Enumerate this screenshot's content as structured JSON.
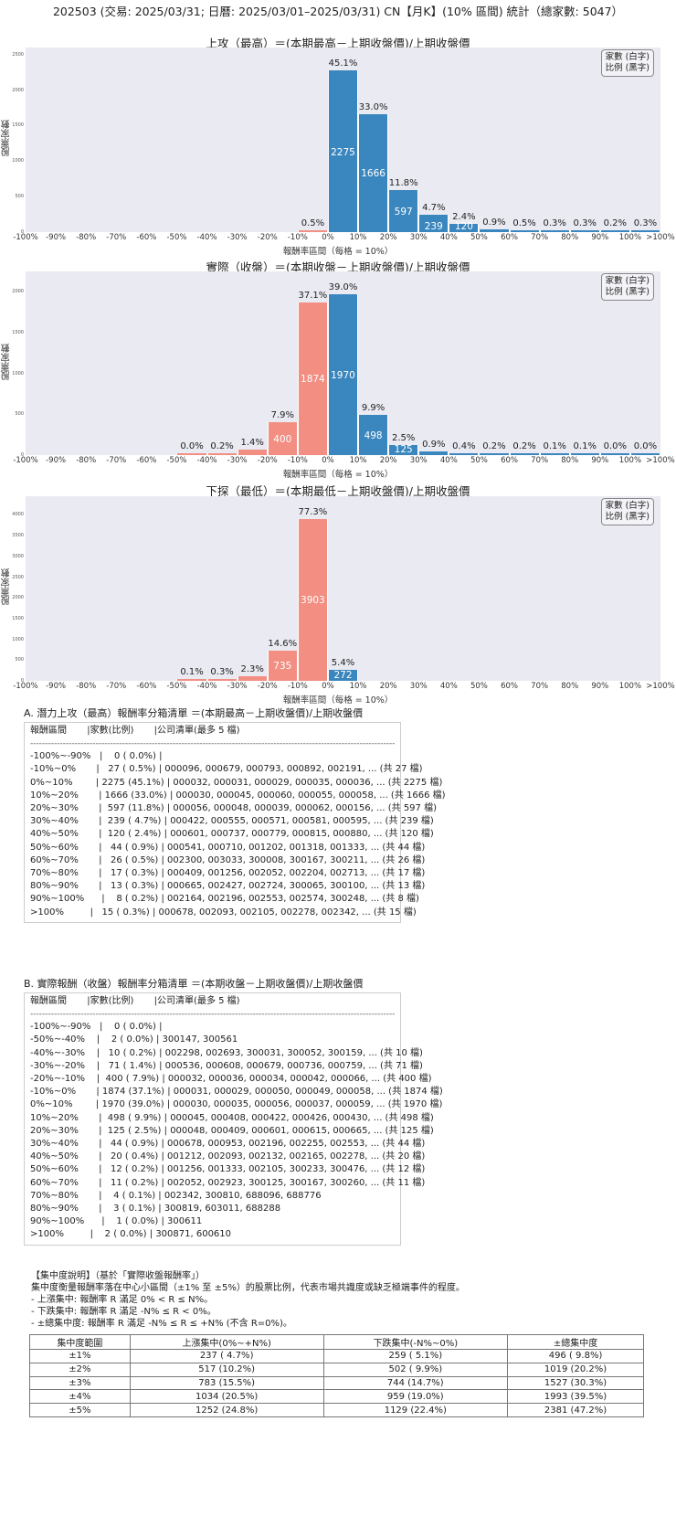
{
  "title": "202503 (交易: 2025/03/31; 日曆: 2025/03/01–2025/03/31) CN【月K】(10% 區間) 統計（總家數: 5047）",
  "legend": {
    "line1": "家數 (白字)",
    "line2": "比例 (黑字)"
  },
  "chart_data": [
    {
      "type": "bar",
      "title": "上攻（最高）＝(本期最高－上期收盤價)/上期收盤價",
      "xlabel": "報酬率區間（每格 = 10%）",
      "ylabel": "股票家數",
      "ylim": [
        0,
        2600
      ],
      "yticks": [
        "0",
        "500",
        "1000",
        "1500",
        "2000",
        "2500"
      ],
      "xticks": [
        "-100%",
        "-90%",
        "-80%",
        "-70%",
        "-60%",
        "-50%",
        "-40%",
        "-30%",
        "-20%",
        "-10%",
        "0%",
        "10%",
        "20%",
        "30%",
        "40%",
        "50%",
        "60%",
        "70%",
        "80%",
        "90%",
        "100%",
        ">100%"
      ],
      "categories": [
        "-100%~-90%",
        "-90%~-80%",
        "-80%~-70%",
        "-70%~-60%",
        "-60%~-50%",
        "-50%~-40%",
        "-40%~-30%",
        "-30%~-20%",
        "-20%~-10%",
        "-10%~0%",
        "0%~10%",
        "10%~20%",
        "20%~30%",
        "30%~40%",
        "40%~50%",
        "50%~60%",
        "60%~70%",
        "70%~80%",
        "80%~90%",
        "90%~100%",
        ">100%"
      ],
      "values": [
        0,
        0,
        0,
        0,
        0,
        0,
        0,
        0,
        0,
        27,
        2275,
        1666,
        597,
        239,
        120,
        44,
        26,
        17,
        13,
        8,
        15
      ],
      "pct_labels": [
        "",
        "",
        "",
        "",
        "",
        "",
        "",
        "",
        "",
        "0.5%",
        "45.1%",
        "33.0%",
        "11.8%",
        "4.7%",
        "2.4%",
        "0.9%",
        "0.5%",
        "0.3%",
        "0.3%",
        "0.2%",
        "0.3%"
      ],
      "count_labels": [
        "",
        "",
        "",
        "",
        "",
        "",
        "",
        "",
        "",
        "",
        "2275",
        "1666",
        "597",
        "239",
        "120",
        "",
        "",
        "",
        "",
        "",
        ""
      ]
    },
    {
      "type": "bar",
      "title": "實際（收盤）＝(本期收盤－上期收盤價)/上期收盤價",
      "xlabel": "報酬率區間（每格 = 10%）",
      "ylabel": "股票家數",
      "ylim": [
        0,
        2250
      ],
      "yticks": [
        "0",
        "500",
        "1000",
        "1500",
        "2000"
      ],
      "xticks": [
        "-100%",
        "-90%",
        "-80%",
        "-70%",
        "-60%",
        "-50%",
        "-40%",
        "-30%",
        "-20%",
        "-10%",
        "0%",
        "10%",
        "20%",
        "30%",
        "40%",
        "50%",
        "60%",
        "70%",
        "80%",
        "90%",
        "100%",
        ">100%"
      ],
      "categories": [
        "-100%~-90%",
        "-90%~-80%",
        "-80%~-70%",
        "-70%~-60%",
        "-60%~-50%",
        "-50%~-40%",
        "-40%~-30%",
        "-30%~-20%",
        "-20%~-10%",
        "-10%~0%",
        "0%~10%",
        "10%~20%",
        "20%~30%",
        "30%~40%",
        "40%~50%",
        "50%~60%",
        "60%~70%",
        "70%~80%",
        "80%~90%",
        "90%~100%",
        ">100%"
      ],
      "values": [
        0,
        0,
        0,
        0,
        0,
        2,
        10,
        71,
        400,
        1874,
        1970,
        498,
        125,
        44,
        20,
        12,
        11,
        4,
        3,
        1,
        2
      ],
      "pct_labels": [
        "",
        "",
        "",
        "",
        "",
        "0.0%",
        "0.2%",
        "1.4%",
        "7.9%",
        "37.1%",
        "39.0%",
        "9.9%",
        "2.5%",
        "0.9%",
        "0.4%",
        "0.2%",
        "0.2%",
        "0.1%",
        "0.1%",
        "0.0%",
        "0.0%"
      ],
      "count_labels": [
        "",
        "",
        "",
        "",
        "",
        "",
        "",
        "",
        "400",
        "1874",
        "1970",
        "498",
        "125",
        "",
        "",
        "",
        "",
        "",
        "",
        "",
        ""
      ]
    },
    {
      "type": "bar",
      "title": "下探（最低）＝(本期最低－上期收盤價)/上期收盤價",
      "xlabel": "報酬率區間（每格 = 10%）",
      "ylabel": "股票家數",
      "ylim": [
        0,
        4450
      ],
      "yticks": [
        "0",
        "500",
        "1000",
        "1500",
        "2000",
        "2500",
        "3000",
        "3500",
        "4000"
      ],
      "xticks": [
        "-100%",
        "-90%",
        "-80%",
        "-70%",
        "-60%",
        "-50%",
        "-40%",
        "-30%",
        "-20%",
        "-10%",
        "0%",
        "10%",
        "20%",
        "30%",
        "40%",
        "50%",
        "60%",
        "70%",
        "80%",
        "90%",
        "100%",
        ">100%"
      ],
      "categories": [
        "-100%~-90%",
        "-90%~-80%",
        "-80%~-70%",
        "-70%~-60%",
        "-60%~-50%",
        "-50%~-40%",
        "-40%~-30%",
        "-30%~-20%",
        "-20%~-10%",
        "-10%~0%",
        "0%~10%",
        "10%~20%",
        "20%~30%",
        "30%~40%",
        "40%~50%",
        "50%~60%",
        "60%~70%",
        "70%~80%",
        "80%~90%",
        "90%~100%",
        ">100%"
      ],
      "values": [
        0,
        0,
        0,
        0,
        0,
        5,
        15,
        117,
        735,
        3903,
        272,
        0,
        0,
        0,
        0,
        0,
        0,
        0,
        0,
        0,
        0
      ],
      "pct_labels": [
        "",
        "",
        "",
        "",
        "",
        "0.1%",
        "0.3%",
        "2.3%",
        "14.6%",
        "77.3%",
        "5.4%",
        "",
        "",
        "",
        "",
        "",
        "",
        "",
        "",
        "",
        ""
      ],
      "count_labels": [
        "",
        "",
        "",
        "",
        "",
        "",
        "",
        "",
        "735",
        "3903",
        "272",
        "",
        "",
        "",
        "",
        "",
        "",
        "",
        "",
        "",
        ""
      ]
    }
  ],
  "section_a": {
    "title": "A. 潛力上攻（最高）報酬率分箱清單 ＝(本期最高－上期收盤價)/上期收盤價",
    "header": "報酬區間       |家數(比例)       |公司清單(最多 5 檔)",
    "divider": "------------------------------------------------------------------------------------------------------------------------------------------",
    "rows": [
      "-100%~-90%   |    0 ( 0.0%) |",
      "-10%~0%       |   27 ( 0.5%) | 000096, 000679, 000793, 000892, 002191, ... (共 27 檔)",
      "0%~10%        | 2275 (45.1%) | 000032, 000031, 000029, 000035, 000036, ... (共 2275 檔)",
      "10%~20%       | 1666 (33.0%) | 000030, 000045, 000060, 000055, 000058, ... (共 1666 檔)",
      "20%~30%       |  597 (11.8%) | 000056, 000048, 000039, 000062, 000156, ... (共 597 檔)",
      "30%~40%       |  239 ( 4.7%) | 000422, 000555, 000571, 000581, 000595, ... (共 239 檔)",
      "40%~50%       |  120 ( 2.4%) | 000601, 000737, 000779, 000815, 000880, ... (共 120 檔)",
      "50%~60%       |   44 ( 0.9%) | 000541, 000710, 001202, 001318, 001333, ... (共 44 檔)",
      "60%~70%       |   26 ( 0.5%) | 002300, 003033, 300008, 300167, 300211, ... (共 26 檔)",
      "70%~80%       |   17 ( 0.3%) | 000409, 001256, 002052, 002204, 002713, ... (共 17 檔)",
      "80%~90%       |   13 ( 0.3%) | 000665, 002427, 002724, 300065, 300100, ... (共 13 檔)",
      "90%~100%      |    8 ( 0.2%) | 002164, 002196, 002553, 002574, 300248, ... (共 8 檔)",
      ">100%         |   15 ( 0.3%) | 000678, 002093, 002105, 002278, 002342, ... (共 15 檔)"
    ]
  },
  "section_b": {
    "title": "B. 實際報酬（收盤）報酬率分箱清單 ＝(本期收盤－上期收盤價)/上期收盤價",
    "header": "報酬區間       |家數(比例)       |公司清單(最多 5 檔)",
    "divider": "------------------------------------------------------------------------------------------------------------------------------------------",
    "rows": [
      "-100%~-90%   |    0 ( 0.0%) |",
      "-50%~-40%    |    2 ( 0.0%) | 300147, 300561",
      "-40%~-30%    |   10 ( 0.2%) | 002298, 002693, 300031, 300052, 300159, ... (共 10 檔)",
      "-30%~-20%    |   71 ( 1.4%) | 000536, 000608, 000679, 000736, 000759, ... (共 71 檔)",
      "-20%~-10%    |  400 ( 7.9%) | 000032, 000036, 000034, 000042, 000066, ... (共 400 檔)",
      "-10%~0%       | 1874 (37.1%) | 000031, 000029, 000050, 000049, 000058, ... (共 1874 檔)",
      "0%~10%        | 1970 (39.0%) | 000030, 000035, 000056, 000037, 000059, ... (共 1970 檔)",
      "10%~20%       |  498 ( 9.9%) | 000045, 000408, 000422, 000426, 000430, ... (共 498 檔)",
      "20%~30%       |  125 ( 2.5%) | 000048, 000409, 000601, 000615, 000665, ... (共 125 檔)",
      "30%~40%       |   44 ( 0.9%) | 000678, 000953, 002196, 002255, 002553, ... (共 44 檔)",
      "40%~50%       |   20 ( 0.4%) | 001212, 002093, 002132, 002165, 002278, ... (共 20 檔)",
      "50%~60%       |   12 ( 0.2%) | 001256, 001333, 002105, 300233, 300476, ... (共 12 檔)",
      "60%~70%       |   11 ( 0.2%) | 002052, 002923, 300125, 300167, 300260, ... (共 11 檔)",
      "70%~80%       |    4 ( 0.1%) | 002342, 300810, 688096, 688776",
      "80%~90%       |    3 ( 0.1%) | 300819, 603011, 688288",
      "90%~100%      |    1 ( 0.0%) | 300611",
      ">100%         |    2 ( 0.0%) | 300871, 600610"
    ]
  },
  "explanation": {
    "heading": "【集中度說明】（基於「實際收盤報酬率」）",
    "line1": "集中度衡量報酬率落在中心小區間（±1% 至 ±5%）的股票比例，代表市場共識度或缺乏極端事件的程度。",
    "line2": " - 上漲集中: 報酬率 R 滿足 0% < R ≤ N%。",
    "line3": " - 下跌集中: 報酬率 R 滿足 -N% ≤ R < 0%。",
    "line4": " - ±總集中度: 報酬率 R 滿足 -N% ≤ R ≤ +N% (不含 R=0%)。"
  },
  "concentration_table": {
    "headers": [
      "集中度範圍",
      "上漲集中(0%~+N%)",
      "下跌集中(-N%~0%)",
      "±總集中度"
    ],
    "rows": [
      [
        "±1%",
        "237 ( 4.7%)",
        "259 ( 5.1%)",
        "496 ( 9.8%)"
      ],
      [
        "±2%",
        "517 (10.2%)",
        "502 ( 9.9%)",
        "1019 (20.2%)"
      ],
      [
        "±3%",
        "783 (15.5%)",
        "744 (14.7%)",
        "1527 (30.3%)"
      ],
      [
        "±4%",
        "1034 (20.5%)",
        "959 (19.0%)",
        "1993 (39.5%)"
      ],
      [
        "±5%",
        "1252 (24.8%)",
        "1129 (22.4%)",
        "2381 (47.2%)"
      ]
    ]
  },
  "colors": {
    "positive": "#3a86be",
    "negative": "#f28e82",
    "plot_bg": "#eaeaf2"
  }
}
